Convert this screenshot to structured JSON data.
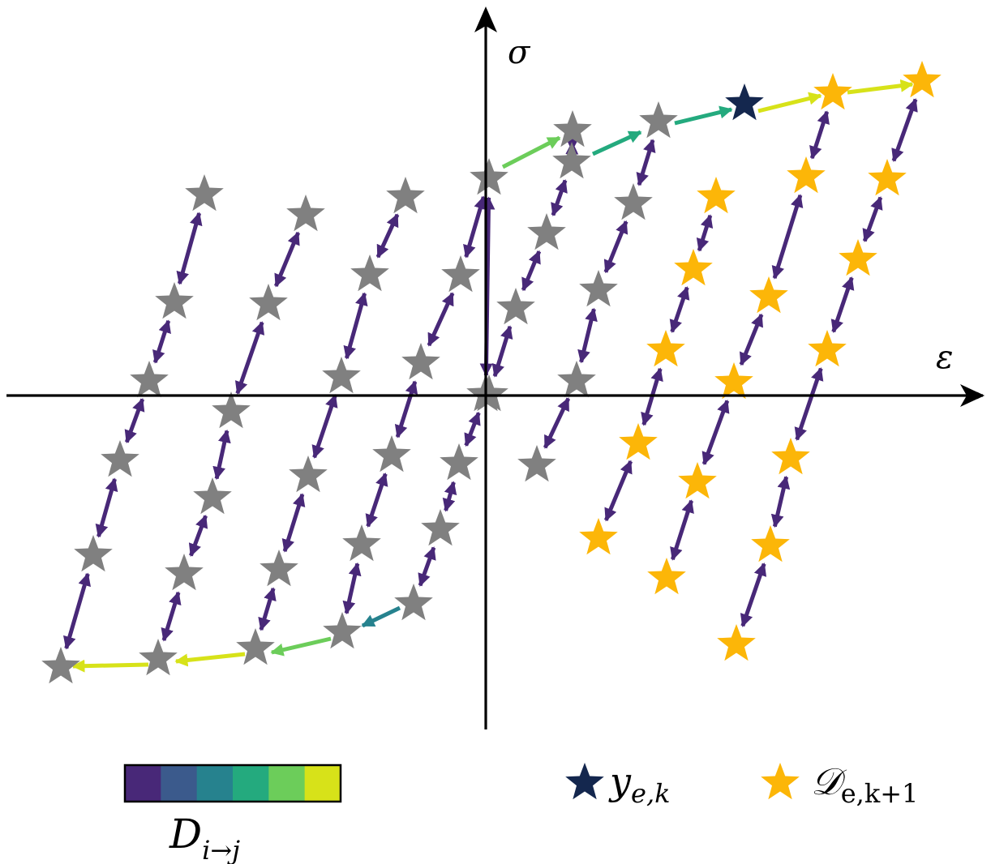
{
  "axes": {
    "x_label": "ε",
    "y_label": "σ"
  },
  "colors": {
    "axis": "#000000",
    "history_star": "#808080",
    "current_star": "#14274e",
    "dataset_star": "#fcb608",
    "viridis": [
      "#482878",
      "#3b5a8c",
      "#26828e",
      "#24aa7e",
      "#6ccd5a",
      "#d7e219"
    ]
  },
  "colorbar": {
    "label_main": "D",
    "label_sub": "i→j"
  },
  "legend": {
    "current": {
      "icon": "star-icon",
      "main": "y",
      "sub": "e,k"
    },
    "dataset": {
      "icon": "star-icon",
      "main": "𝒟",
      "sub": "e,k+1"
    }
  }
}
